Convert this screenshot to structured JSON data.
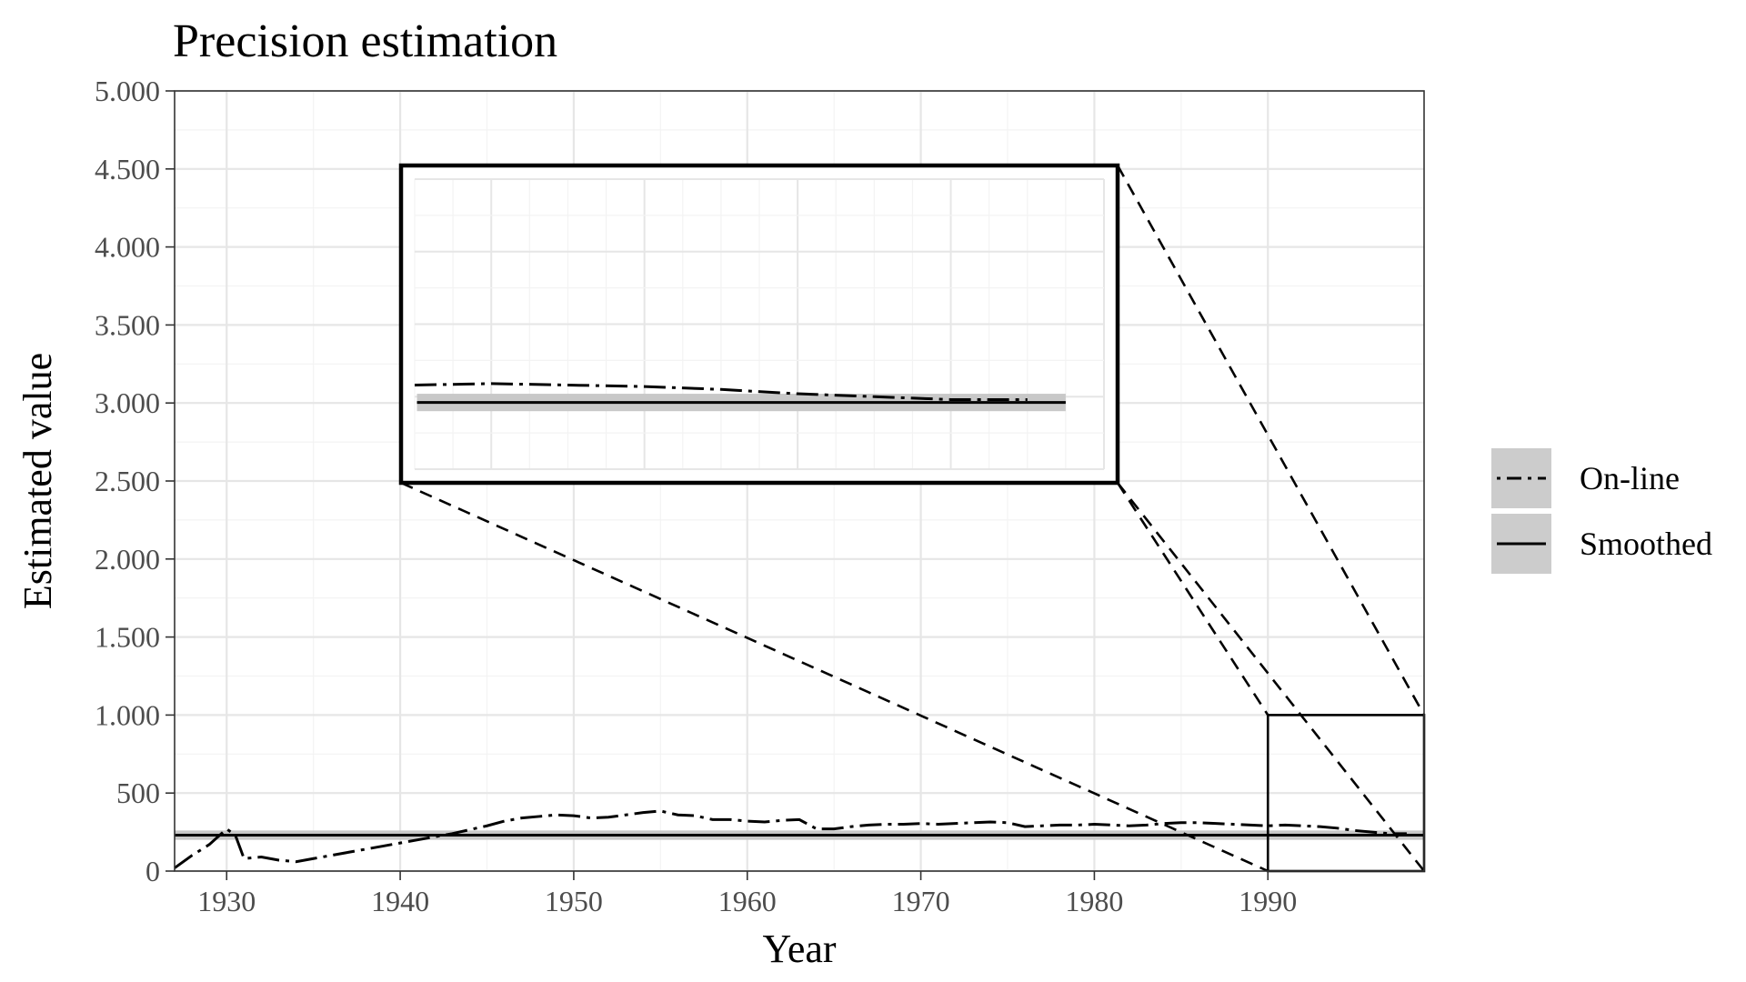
{
  "chart_data": {
    "type": "line",
    "title": "Precision estimation",
    "xlabel": "Year",
    "ylabel": "Estimated value",
    "xlim": [
      1927,
      1999
    ],
    "ylim": [
      0,
      5000
    ],
    "x_ticks": [
      1930,
      1940,
      1950,
      1960,
      1970,
      1980,
      1990
    ],
    "x_tick_labels": [
      "1930",
      "1940",
      "1950",
      "1960",
      "1970",
      "1980",
      "1990"
    ],
    "y_ticks": [
      0,
      500,
      1000,
      1500,
      2000,
      2500,
      3000,
      3500,
      4000,
      4500,
      5000
    ],
    "y_tick_labels": [
      "0",
      "500",
      "1.000",
      "1.500",
      "2.000",
      "2.500",
      "3.000",
      "3.500",
      "4.000",
      "4.500",
      "5.000"
    ],
    "grid": true,
    "legend_position": "right",
    "series": [
      {
        "name": "On-line",
        "line_style": "dot-dash",
        "color": "#000000",
        "x": [
          1927,
          1928,
          1929,
          1930,
          1930.5,
          1931,
          1932,
          1933,
          1934,
          1935,
          1936,
          1937,
          1938,
          1939,
          1940,
          1941,
          1942,
          1943,
          1944,
          1945,
          1946,
          1947,
          1948,
          1949,
          1950,
          1951,
          1952,
          1953,
          1954,
          1955,
          1956,
          1957,
          1958,
          1959,
          1960,
          1961,
          1962,
          1963,
          1964,
          1965,
          1966,
          1967,
          1968,
          1969,
          1970,
          1971,
          1972,
          1973,
          1974,
          1975,
          1976,
          1977,
          1978,
          1979,
          1980,
          1981,
          1982,
          1983,
          1984,
          1985,
          1986,
          1987,
          1988,
          1989,
          1990,
          1991,
          1992,
          1993,
          1994,
          1995,
          1996,
          1997,
          1998
        ],
        "y": [
          20,
          100,
          170,
          270,
          230,
          80,
          90,
          70,
          60,
          80,
          100,
          120,
          140,
          160,
          180,
          200,
          220,
          240,
          265,
          290,
          320,
          340,
          350,
          360,
          355,
          340,
          345,
          360,
          375,
          385,
          360,
          355,
          330,
          330,
          320,
          315,
          325,
          330,
          270,
          270,
          285,
          295,
          300,
          300,
          305,
          300,
          305,
          310,
          315,
          310,
          285,
          290,
          295,
          295,
          300,
          295,
          290,
          295,
          305,
          310,
          310,
          305,
          300,
          295,
          290,
          295,
          290,
          285,
          275,
          260,
          250,
          240,
          240
        ]
      },
      {
        "name": "Smoothed",
        "line_style": "solid",
        "color": "#000000",
        "band_color": "#c8c8c8",
        "x": [
          1927,
          1999
        ],
        "y": [
          230,
          230
        ],
        "band_lower": [
          200,
          200
        ],
        "band_upper": [
          260,
          260
        ]
      }
    ],
    "zoom_region": {
      "x_range": [
        1990,
        1999
      ],
      "y_range": [
        0,
        1000
      ]
    }
  }
}
